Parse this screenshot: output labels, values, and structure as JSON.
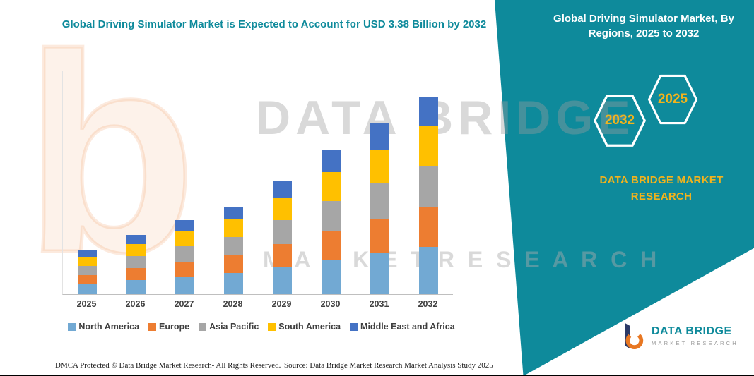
{
  "theme": {
    "teal": "#0E8A9B",
    "yellow": "#F2B31C",
    "orange": "#ED7D31",
    "axis_text": "#404040"
  },
  "titles": {
    "left": "Global Driving Simulator Market is Expected to Account for USD 3.38 Billion by 2032",
    "right_panel": "Global Driving Simulator Market, By Regions, 2025 to 2032"
  },
  "panel": {
    "badges": [
      {
        "label": "2032"
      },
      {
        "label": "2025"
      }
    ],
    "brand_text": "DATA BRIDGE MARKET RESEARCH"
  },
  "chart_data": {
    "type": "bar",
    "stacked": true,
    "title": "Global Driving Simulator Market is Expected to Account for USD 3.38 Billion by 2032",
    "categories": [
      "2025",
      "2026",
      "2027",
      "2028",
      "2029",
      "2030",
      "2031",
      "2032"
    ],
    "series": [
      {
        "name": "North America",
        "color": "#72A9D3",
        "values": [
          0.18,
          0.24,
          0.3,
          0.36,
          0.47,
          0.59,
          0.7,
          0.81
        ]
      },
      {
        "name": "Europe",
        "color": "#ED7D31",
        "values": [
          0.15,
          0.2,
          0.25,
          0.3,
          0.39,
          0.49,
          0.58,
          0.68
        ]
      },
      {
        "name": "Asia Pacific",
        "color": "#A6A6A6",
        "values": [
          0.16,
          0.21,
          0.26,
          0.31,
          0.41,
          0.51,
          0.61,
          0.71
        ]
      },
      {
        "name": "South America",
        "color": "#FFC000",
        "values": [
          0.15,
          0.2,
          0.25,
          0.3,
          0.39,
          0.49,
          0.58,
          0.68
        ]
      },
      {
        "name": "Middle East and Africa",
        "color": "#4472C4",
        "values": [
          0.12,
          0.16,
          0.19,
          0.22,
          0.29,
          0.37,
          0.44,
          0.5
        ]
      }
    ],
    "totals": [
      0.76,
      1.01,
      1.25,
      1.49,
      1.95,
      2.45,
      2.91,
      3.38
    ],
    "ylim": [
      0,
      3.6
    ],
    "gridlines": false,
    "legend_position": "bottom"
  },
  "watermark": {
    "line1": "DATA BRIDGE",
    "line2": "M A R K E T   R E S E A R C H",
    "glyph": "b"
  },
  "logo": {
    "brand": "DATA BRIDGE",
    "subtitle": "MARKET RESEARCH"
  },
  "footer": {
    "left": "DMCA Protected © Data Bridge Market Research-  All Rights Reserved.",
    "source": "Source: Data Bridge Market Research  Market Analysis Study 2025"
  }
}
